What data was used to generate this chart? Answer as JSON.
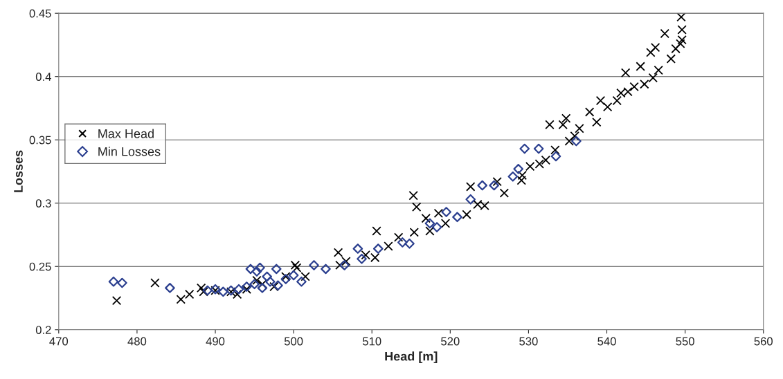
{
  "chart_data": {
    "type": "scatter",
    "xlabel": "Head [m]",
    "ylabel": "Losses",
    "xlim": [
      470,
      560
    ],
    "xticks": [
      470,
      480,
      490,
      500,
      510,
      520,
      530,
      540,
      550,
      560
    ],
    "ylim": [
      0.2,
      0.45
    ],
    "yticks": [
      0.2,
      0.25,
      0.3,
      0.35,
      0.4,
      0.45
    ],
    "grid": "y",
    "legend": "top left",
    "series": [
      {
        "name": "Max Head",
        "color": "#000000",
        "marker": "cross",
        "x": [
          477.4,
          482.3,
          485.6,
          486.7,
          488.2,
          488.5,
          490.0,
          492.0,
          492.8,
          494.0,
          495.3,
          496.0,
          497.5,
          499.0,
          500.2,
          500.4,
          501.5,
          505.7,
          505.9,
          506.7,
          509.2,
          510.4,
          510.6,
          512.1,
          513.4,
          515.3,
          515.7,
          515.4,
          516.9,
          518.5,
          519.4,
          517.4,
          522.6,
          522.1,
          523.5,
          524.4,
          526.0,
          526.9,
          529.1,
          529.2,
          530.2,
          531.4,
          532.2,
          532.7,
          533.4,
          534.4,
          534.8,
          535.2,
          535.9,
          536.5,
          537.8,
          538.7,
          539.2,
          540.1,
          541.3,
          541.8,
          542.7,
          542.4,
          543.5,
          544.3,
          544.8,
          545.9,
          545.6,
          546.6,
          546.2,
          548.2,
          547.4,
          548.8,
          549.4,
          549.6,
          549.5,
          549.6
        ],
        "values": [
          0.223,
          0.237,
          0.224,
          0.228,
          0.233,
          0.23,
          0.231,
          0.23,
          0.228,
          0.232,
          0.239,
          0.236,
          0.234,
          0.242,
          0.251,
          0.249,
          0.242,
          0.261,
          0.251,
          0.254,
          0.259,
          0.257,
          0.278,
          0.266,
          0.273,
          0.306,
          0.297,
          0.277,
          0.288,
          0.292,
          0.284,
          0.278,
          0.313,
          0.291,
          0.299,
          0.298,
          0.317,
          0.308,
          0.318,
          0.322,
          0.329,
          0.331,
          0.334,
          0.362,
          0.342,
          0.362,
          0.367,
          0.349,
          0.353,
          0.359,
          0.372,
          0.364,
          0.381,
          0.376,
          0.381,
          0.387,
          0.388,
          0.403,
          0.392,
          0.408,
          0.394,
          0.399,
          0.419,
          0.405,
          0.423,
          0.414,
          0.434,
          0.422,
          0.426,
          0.429,
          0.447,
          0.437
        ]
      },
      {
        "name": "Min Losses",
        "color": "#2b3f8f",
        "marker": "diamond",
        "x": [
          477.0,
          478.1,
          484.2,
          489.0,
          490.0,
          491.0,
          492.0,
          493.0,
          494.0,
          494.5,
          495.0,
          495.3,
          495.7,
          496.0,
          496.6,
          497.0,
          497.8,
          498.0,
          499.0,
          500.0,
          501.0,
          502.6,
          504.1,
          506.5,
          508.2,
          508.7,
          510.8,
          513.9,
          514.8,
          517.4,
          518.3,
          519.5,
          520.9,
          522.6,
          524.1,
          525.6,
          528.7,
          528.0,
          529.5,
          531.3,
          533.5,
          536.1
        ],
        "values": [
          0.238,
          0.237,
          0.233,
          0.231,
          0.232,
          0.23,
          0.231,
          0.232,
          0.234,
          0.248,
          0.236,
          0.246,
          0.249,
          0.233,
          0.242,
          0.238,
          0.248,
          0.235,
          0.24,
          0.243,
          0.238,
          0.251,
          0.248,
          0.251,
          0.264,
          0.256,
          0.264,
          0.269,
          0.268,
          0.284,
          0.281,
          0.293,
          0.289,
          0.303,
          0.314,
          0.314,
          0.327,
          0.321,
          0.343,
          0.343,
          0.337,
          0.349
        ]
      }
    ]
  }
}
